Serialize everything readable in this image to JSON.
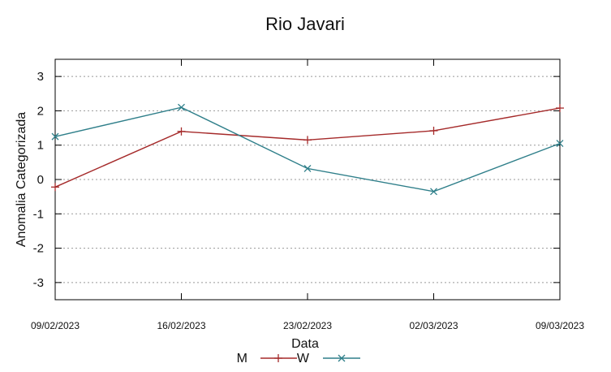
{
  "chart_data": {
    "type": "line",
    "title": "Rio Javari",
    "xlabel": "Data",
    "ylabel": "Anomalia Categorizada",
    "categories": [
      "09/02/2023",
      "16/02/2023",
      "23/02/2023",
      "02/03/2023",
      "09/03/2023"
    ],
    "ylim": [
      -3.5,
      3.5
    ],
    "yticks": [
      -3,
      -2,
      -1,
      0,
      1,
      2,
      3
    ],
    "ytick_labels": [
      "-3",
      "-2",
      "-1",
      "0",
      "1",
      "2",
      "3"
    ],
    "grid": "horizontal dotted",
    "legend_position": "bottom-center",
    "series": [
      {
        "name": "M",
        "values": [
          -0.22,
          1.4,
          1.15,
          1.42,
          2.08
        ],
        "color": "#a52a2a",
        "marker": "plus"
      },
      {
        "name": "W",
        "values": [
          1.25,
          2.1,
          0.32,
          -0.35,
          1.05
        ],
        "color": "#2f7f8a",
        "marker": "cross"
      }
    ]
  }
}
